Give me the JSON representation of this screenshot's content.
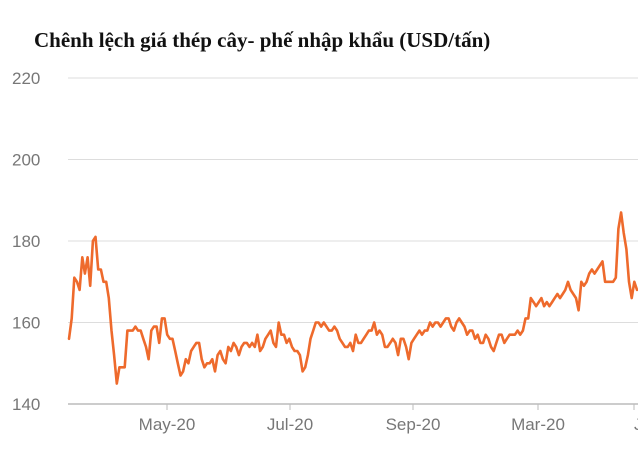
{
  "chart_data": {
    "type": "line",
    "title": "Chênh lệch giá thép cây- phế nhập khẩu (USD/tấn)",
    "xlabel": "",
    "ylabel": "",
    "ylim": [
      140,
      220
    ],
    "y_ticks": [
      "140",
      "160",
      "180",
      "200",
      "220"
    ],
    "x_ticks": [
      "May-20",
      "Jul-20",
      "Sep-20",
      "Mar-20",
      "J"
    ],
    "grid": true,
    "colors": {
      "line": "#ee6a2c",
      "grid": "#dddddd",
      "axis": "#bbbbbb"
    },
    "series": [
      {
        "values": [
          156,
          161,
          171,
          170,
          168,
          176,
          172,
          176,
          169,
          180,
          181,
          173,
          173,
          170,
          170,
          166,
          158,
          152,
          145,
          149,
          149,
          149,
          158,
          158,
          158,
          159,
          158,
          158,
          156,
          154,
          151,
          158,
          159,
          159,
          155,
          161,
          161,
          157,
          156,
          156,
          153,
          150,
          147,
          148,
          151,
          150,
          153,
          154,
          155,
          155,
          151,
          149,
          150,
          150,
          151,
          148,
          152,
          153,
          151,
          150,
          154,
          153,
          155,
          154,
          152,
          154,
          155,
          155,
          154,
          155,
          154,
          157,
          153,
          154,
          156,
          157,
          158,
          155,
          154,
          160,
          157,
          157,
          155,
          156,
          154,
          153,
          153,
          152,
          148,
          149,
          152,
          156,
          158,
          160,
          160,
          159,
          160,
          159,
          158,
          158,
          159,
          158,
          156,
          155,
          154,
          154,
          155,
          153,
          157,
          155,
          155,
          156,
          157,
          158,
          158,
          160,
          157,
          158,
          157,
          154,
          154,
          155,
          156,
          155,
          152,
          156,
          156,
          154,
          151,
          155,
          156,
          157,
          158,
          157,
          158,
          158,
          160,
          159,
          160,
          160,
          159,
          160,
          161,
          161,
          159,
          158,
          160,
          161,
          160,
          159,
          157,
          158,
          158,
          156,
          157,
          155,
          155,
          157,
          156,
          154,
          153,
          155,
          157,
          157,
          155,
          156,
          157,
          157,
          157,
          158,
          157,
          158,
          161,
          161,
          166,
          165,
          164,
          165,
          166,
          164,
          165,
          164,
          165,
          166,
          167,
          166,
          167,
          168,
          170,
          168,
          167,
          166,
          163,
          170,
          169,
          170,
          172,
          173,
          172,
          173,
          174,
          175,
          170,
          170,
          170,
          170,
          171,
          183,
          187,
          182,
          178,
          170,
          166,
          170,
          168
        ]
      }
    ]
  }
}
